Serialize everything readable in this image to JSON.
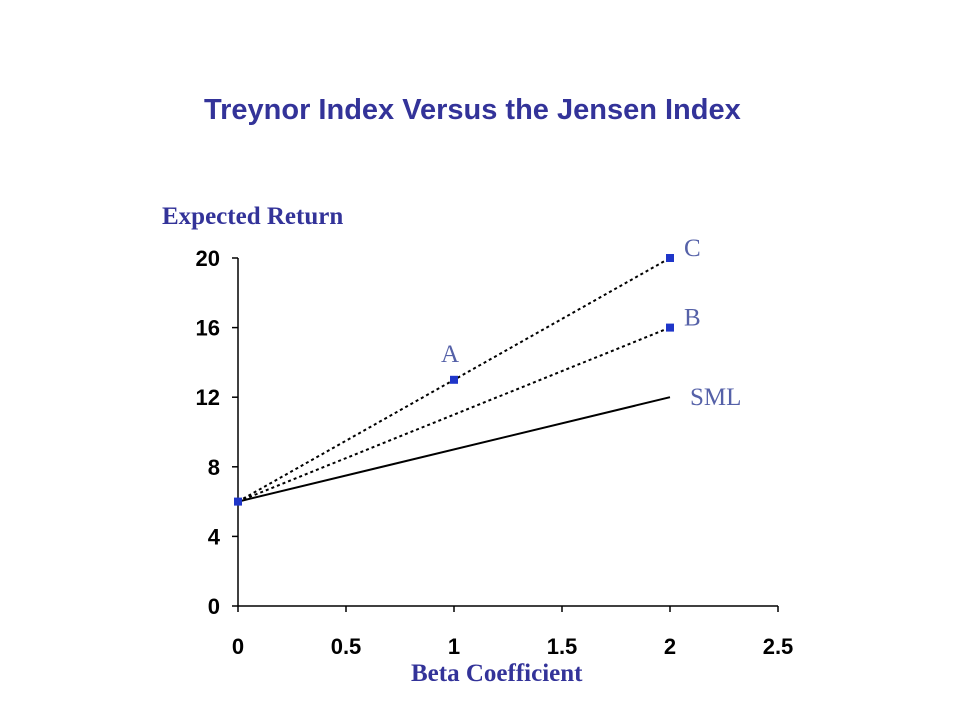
{
  "colors": {
    "title": "#333399",
    "axis_label": "#333399",
    "point": "#1f36c9",
    "point_label": "#5561a8",
    "line": "#000000"
  },
  "chart_data": {
    "type": "line",
    "title": "Treynor Index Versus the Jensen Index",
    "xlabel": "Beta Coefficient",
    "ylabel": "Expected Return",
    "xlim": [
      0,
      2.5
    ],
    "ylim": [
      0,
      20
    ],
    "x_ticks": [
      "0",
      "0.5",
      "1",
      "1.5",
      "2",
      "2.5"
    ],
    "y_ticks": [
      "0",
      "4",
      "8",
      "12",
      "16",
      "20"
    ],
    "grid": false,
    "legend": "none",
    "lines": [
      {
        "label": "SML",
        "style": "solid",
        "points": [
          [
            0,
            6
          ],
          [
            2,
            12
          ]
        ]
      },
      {
        "label": "",
        "style": "dotted",
        "points": [
          [
            0,
            6
          ],
          [
            2,
            16
          ]
        ]
      },
      {
        "label": "",
        "style": "dotted",
        "points": [
          [
            0,
            6
          ],
          [
            2,
            20
          ]
        ]
      }
    ],
    "points": [
      {
        "label": "",
        "x": 0,
        "y": 6
      },
      {
        "label": "A",
        "x": 1,
        "y": 13
      },
      {
        "label": "B",
        "x": 2,
        "y": 16
      },
      {
        "label": "C",
        "x": 2,
        "y": 20
      }
    ]
  }
}
